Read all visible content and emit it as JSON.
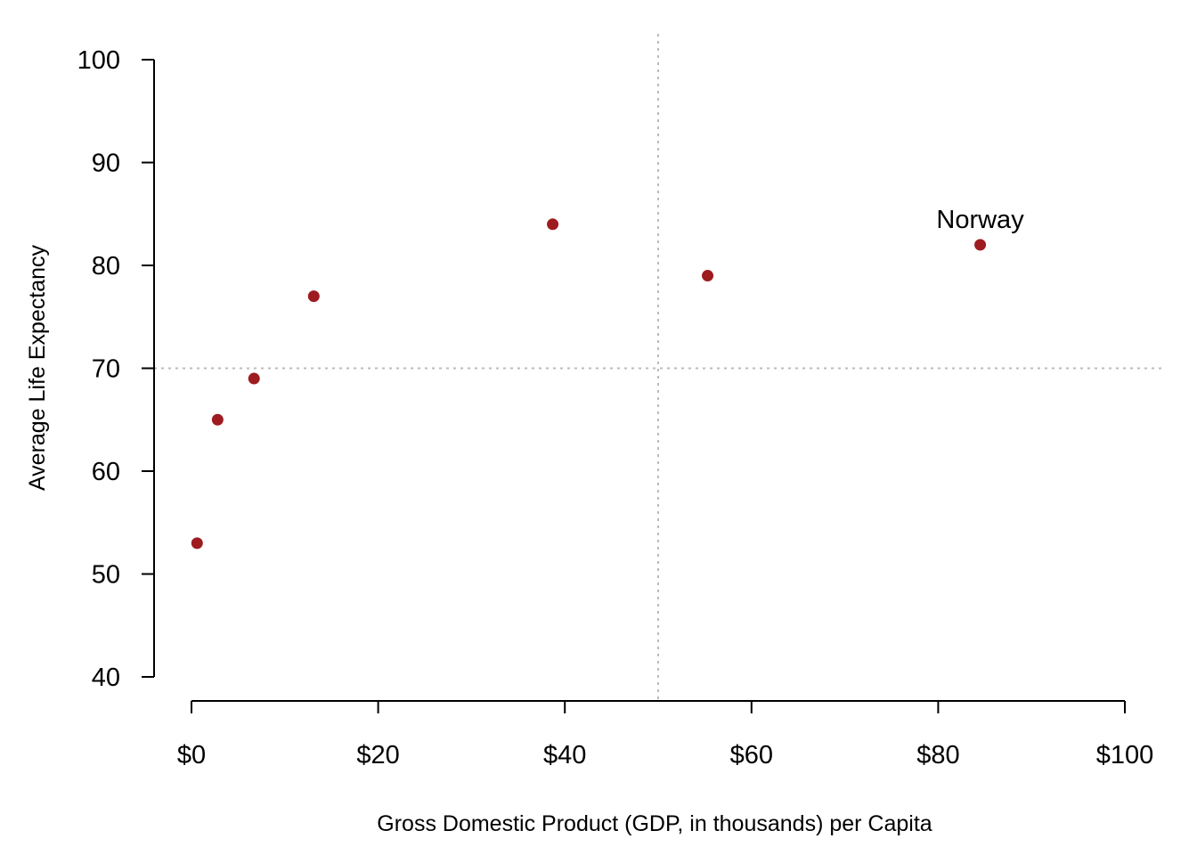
{
  "chart_data": {
    "type": "scatter",
    "title": "",
    "xlabel": "Gross Domestic Product (GDP, in thousands) per Capita",
    "ylabel": "Average Life Expectancy",
    "xlim": [
      0,
      100
    ],
    "ylim": [
      40,
      100
    ],
    "x_ticks": [
      0,
      20,
      40,
      60,
      80,
      100
    ],
    "x_tick_labels": [
      "$0",
      "$20",
      "$40",
      "$60",
      "$80",
      "$100"
    ],
    "y_ticks": [
      40,
      50,
      60,
      70,
      80,
      90,
      100
    ],
    "y_tick_labels": [
      "40",
      "50",
      "60",
      "70",
      "80",
      "90",
      "100"
    ],
    "grid": false,
    "legend": "none",
    "reference_lines": {
      "vertical_x": 50,
      "horizontal_y": 70,
      "style": "dotted",
      "color": "#bbbbbb"
    },
    "point_color": "#9e1b1f",
    "series": [
      {
        "x": [
          0.6,
          2.8,
          6.7,
          13.1,
          38.7,
          55.3,
          84.5
        ],
        "y": [
          53,
          65,
          69,
          77,
          84,
          79,
          82
        ]
      }
    ],
    "annotations": [
      {
        "text": "Norway",
        "x": 84.5,
        "y": 82
      }
    ]
  }
}
